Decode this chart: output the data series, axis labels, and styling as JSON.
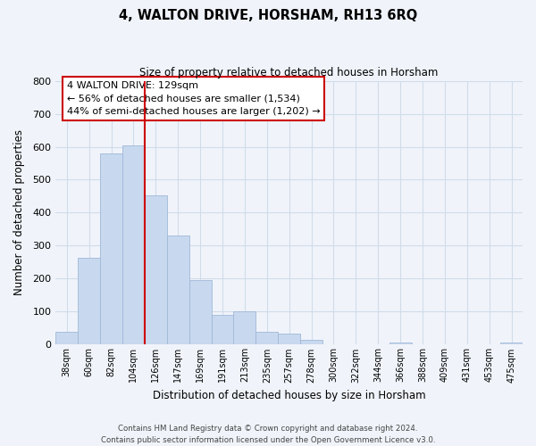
{
  "title": "4, WALTON DRIVE, HORSHAM, RH13 6RQ",
  "subtitle": "Size of property relative to detached houses in Horsham",
  "xlabel": "Distribution of detached houses by size in Horsham",
  "ylabel": "Number of detached properties",
  "bar_labels": [
    "38sqm",
    "60sqm",
    "82sqm",
    "104sqm",
    "126sqm",
    "147sqm",
    "169sqm",
    "191sqm",
    "213sqm",
    "235sqm",
    "257sqm",
    "278sqm",
    "300sqm",
    "322sqm",
    "344sqm",
    "366sqm",
    "388sqm",
    "409sqm",
    "431sqm",
    "453sqm",
    "475sqm"
  ],
  "bar_heights": [
    38,
    263,
    581,
    603,
    452,
    330,
    196,
    90,
    101,
    38,
    33,
    14,
    0,
    0,
    0,
    7,
    0,
    0,
    0,
    0,
    7
  ],
  "bar_color": "#c8d8ee",
  "bar_edge_color": "#a0b8d8",
  "vline_bar_index": 4,
  "vline_color": "#cc0000",
  "ylim": [
    0,
    800
  ],
  "yticks": [
    0,
    100,
    200,
    300,
    400,
    500,
    600,
    700,
    800
  ],
  "annotation_title": "4 WALTON DRIVE: 129sqm",
  "annotation_line1": "← 56% of detached houses are smaller (1,534)",
  "annotation_line2": "44% of semi-detached houses are larger (1,202) →",
  "footer_line1": "Contains HM Land Registry data © Crown copyright and database right 2024.",
  "footer_line2": "Contains public sector information licensed under the Open Government Licence v3.0.",
  "grid_color": "#d0dcea",
  "background_color": "#f0f4fa"
}
